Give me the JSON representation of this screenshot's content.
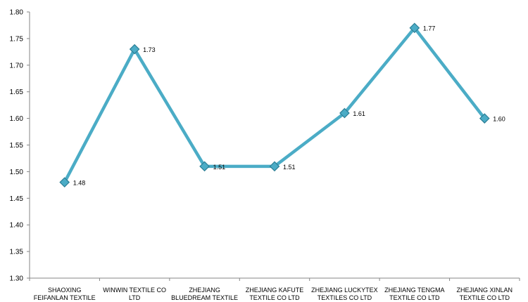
{
  "chart_data": {
    "type": "line",
    "title": "",
    "xlabel": "",
    "ylabel": "",
    "categories": [
      [
        "SHAOXING",
        "FEIFANLAN TEXTILE"
      ],
      [
        "WINWIN TEXTILE CO",
        "LTD"
      ],
      [
        "ZHEJIANG",
        "BLUEDREAM TEXTILE"
      ],
      [
        "ZHEJIANG KAFUTE",
        "TEXTILE CO LTD"
      ],
      [
        "ZHEJIANG LUCKYTEX",
        "TEXTILES CO LTD"
      ],
      [
        "ZHEJIANG TENGMA",
        "TEXTILE CO LTD"
      ],
      [
        "ZHEJIANG XINLAN",
        "TEXTILE CO LTD"
      ]
    ],
    "series": [
      {
        "values": [
          1.48,
          1.73,
          1.51,
          1.51,
          1.61,
          1.77,
          1.6
        ],
        "color": "#4bacc6",
        "marker": "diamond"
      }
    ],
    "value_labels": [
      "1.48",
      "1.73",
      "1.51",
      "1.51",
      "1.61",
      "1.77",
      "1.60"
    ],
    "y_ticks": [
      "1.30",
      "1.35",
      "1.40",
      "1.45",
      "1.50",
      "1.55",
      "1.60",
      "1.65",
      "1.70",
      "1.75",
      "1.80"
    ],
    "ylim": [
      1.3,
      1.8
    ],
    "grid": false,
    "legend": "none",
    "colors": {
      "line": "#4bacc6",
      "marker_fill": "#4bacc6",
      "marker_stroke": "#2c7f96",
      "axis": "#868686"
    }
  }
}
